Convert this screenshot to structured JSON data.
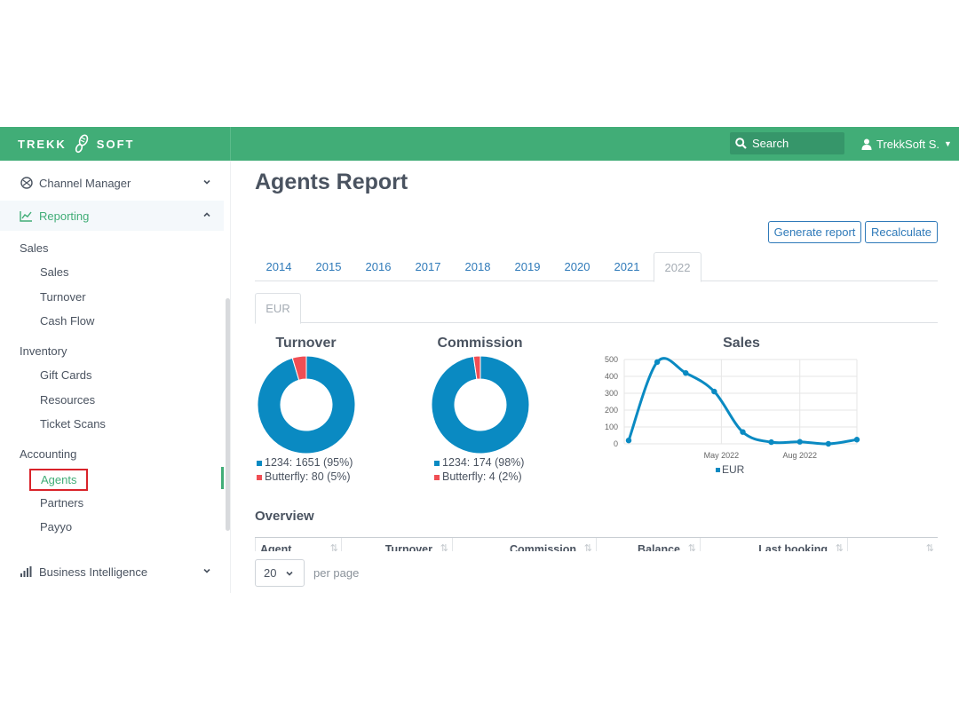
{
  "brand": {
    "left": "TREKK",
    "right": "SOFT"
  },
  "header": {
    "search_label": "Search",
    "user_label": "TrekkSoft S."
  },
  "sidebar": {
    "channel_manager": "Channel Manager",
    "reporting": "Reporting",
    "groups": {
      "sales": "Sales",
      "inventory": "Inventory",
      "accounting": "Accounting"
    },
    "sales_items": [
      "Sales",
      "Turnover",
      "Cash Flow"
    ],
    "inventory_items": [
      "Gift Cards",
      "Resources",
      "Ticket Scans"
    ],
    "accounting_items": [
      "Agents",
      "Partners",
      "Payyo"
    ],
    "business_intelligence": "Business Intelligence"
  },
  "page": {
    "title": "Agents Report",
    "buttons": {
      "generate": "Generate report",
      "recalculate": "Recalculate"
    },
    "year_tabs": [
      "2014",
      "2015",
      "2016",
      "2017",
      "2018",
      "2019",
      "2020",
      "2021",
      "2022"
    ],
    "active_year": "2022",
    "currency_tabs": [
      "EUR"
    ],
    "overview_title": "Overview",
    "table_headers": [
      "Agent",
      "Turnover",
      "Commission",
      "Balance",
      "Last booking",
      ""
    ],
    "per_page_value": "20",
    "per_page_label": "per page"
  },
  "colors": {
    "primary": "#41ad77",
    "blue": "#0a8ac2",
    "red": "#f04e54",
    "link": "#2f7ab9"
  },
  "chart_data": [
    {
      "type": "pie",
      "title": "Turnover",
      "labels": [
        "1234",
        "Butterfly"
      ],
      "values": [
        1651,
        80
      ],
      "percents": [
        95,
        5
      ],
      "legend": [
        "1234: 1651 (95%)",
        "Butterfly: 80 (5%)"
      ]
    },
    {
      "type": "pie",
      "title": "Commission",
      "labels": [
        "1234",
        "Butterfly"
      ],
      "values": [
        174,
        4
      ],
      "percents": [
        98,
        2
      ],
      "legend": [
        "1234: 174 (98%)",
        "Butterfly: 4 (2%)"
      ]
    },
    {
      "type": "line",
      "title": "Sales",
      "series": [
        {
          "name": "EUR",
          "values": [
            20,
            485,
            420,
            310,
            70,
            10,
            12,
            0,
            25
          ]
        }
      ],
      "x_tick_labels": [
        "May 2022",
        "Aug 2022"
      ],
      "y_ticks": [
        0,
        100,
        200,
        300,
        400,
        500
      ],
      "ylim": [
        0,
        500
      ],
      "legend": "bottom"
    }
  ]
}
